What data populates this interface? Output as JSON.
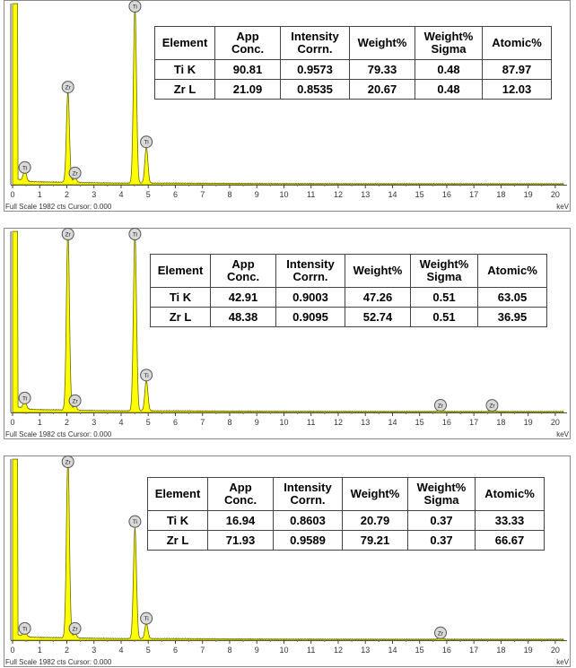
{
  "colors": {
    "spectrum_fill": "#ffff00",
    "spectrum_line": "#6b6b00",
    "frame": "#8a8a8a",
    "grid": "#bdbdbd",
    "marker_fill": "#d9d9d9"
  },
  "charts": [
    {
      "table": {
        "headers": [
          "Element",
          "App\nConc.",
          "Intensity\nCorrn.",
          "Weight%",
          "Weight%\nSigma",
          "Atomic%"
        ],
        "rows": [
          [
            "Ti K",
            "90.81",
            "0.9573",
            "79.33",
            "0.48",
            "87.97"
          ],
          [
            "Zr L",
            "21.09",
            "0.8535",
            "20.67",
            "0.48",
            "12.03"
          ]
        ]
      },
      "status": "Full Scale 1982 cts Cursor: 0.000",
      "unit": "keV",
      "marker_label_Ti": "Ti",
      "marker_label_Zr": "Zr"
    },
    {
      "table": {
        "headers": [
          "Element",
          "App\nConc.",
          "Intensity\nCorrn.",
          "Weight%",
          "Weight%\nSigma",
          "Atomic%"
        ],
        "rows": [
          [
            "Ti K",
            "42.91",
            "0.9003",
            "47.26",
            "0.51",
            "63.05"
          ],
          [
            "Zr L",
            "48.38",
            "0.9095",
            "52.74",
            "0.51",
            "36.95"
          ]
        ]
      },
      "status": "Full Scale 1982 cts Cursor: 0.000",
      "unit": "keV",
      "marker_label_Ti": "Ti",
      "marker_label_Zr": "Zr"
    },
    {
      "table": {
        "headers": [
          "Element",
          "App\nConc.",
          "Intensity\nCorrn.",
          "Weight%",
          "Weight%\nSigma",
          "Atomic%"
        ],
        "rows": [
          [
            "Ti K",
            "16.94",
            "0.8603",
            "20.79",
            "0.37",
            "33.33"
          ],
          [
            "Zr L",
            "71.93",
            "0.9589",
            "79.21",
            "0.37",
            "66.67"
          ]
        ]
      },
      "status": "Full Scale 1982 cts Cursor: 0.000",
      "unit": "keV",
      "marker_label_Ti": "Ti",
      "marker_label_Zr": "Zr"
    }
  ],
  "chart_data": [
    {
      "type": "area",
      "xlabel": "keV",
      "xlim": [
        0,
        20.3
      ],
      "ylim": [
        0,
        1982
      ],
      "xticks": [
        "0",
        "1",
        "2",
        "3",
        "4",
        "5",
        "6",
        "7",
        "8",
        "9",
        "10",
        "11",
        "12",
        "13",
        "14",
        "15",
        "16",
        "17",
        "18",
        "19",
        "20"
      ],
      "peaks": [
        {
          "element": "Ti",
          "x": 0.45,
          "y": 120
        },
        {
          "element": "Zr",
          "x": 2.04,
          "y": 1000
        },
        {
          "element": "Zr",
          "x": 2.3,
          "y": 60
        },
        {
          "element": "Ti",
          "x": 4.51,
          "y": 1982
        },
        {
          "element": "Ti",
          "x": 4.93,
          "y": 400
        }
      ]
    },
    {
      "type": "area",
      "xlabel": "keV",
      "xlim": [
        0,
        20.3
      ],
      "ylim": [
        0,
        1982
      ],
      "xticks": [
        "0",
        "1",
        "2",
        "3",
        "4",
        "5",
        "6",
        "7",
        "8",
        "9",
        "10",
        "11",
        "12",
        "13",
        "14",
        "15",
        "16",
        "17",
        "18",
        "19",
        "20"
      ],
      "peaks": [
        {
          "element": "Ti",
          "x": 0.45,
          "y": 90
        },
        {
          "element": "Zr",
          "x": 2.04,
          "y": 1982
        },
        {
          "element": "Zr",
          "x": 2.3,
          "y": 60
        },
        {
          "element": "Ti",
          "x": 4.51,
          "y": 1982
        },
        {
          "element": "Ti",
          "x": 4.93,
          "y": 340
        },
        {
          "element": "Zr",
          "x": 15.77,
          "y": 10
        },
        {
          "element": "Zr",
          "x": 17.67,
          "y": 8
        }
      ]
    },
    {
      "type": "area",
      "xlabel": "keV",
      "xlim": [
        0,
        20.3
      ],
      "ylim": [
        0,
        1982
      ],
      "xticks": [
        "0",
        "1",
        "2",
        "3",
        "4",
        "5",
        "6",
        "7",
        "8",
        "9",
        "10",
        "11",
        "12",
        "13",
        "14",
        "15",
        "16",
        "17",
        "18",
        "19",
        "20"
      ],
      "peaks": [
        {
          "element": "Ti",
          "x": 0.45,
          "y": 60
        },
        {
          "element": "Zr",
          "x": 2.04,
          "y": 1982
        },
        {
          "element": "Zr",
          "x": 2.3,
          "y": 60
        },
        {
          "element": "Ti",
          "x": 4.51,
          "y": 1230
        },
        {
          "element": "Ti",
          "x": 4.93,
          "y": 170
        },
        {
          "element": "Zr",
          "x": 15.77,
          "y": 12
        }
      ]
    }
  ]
}
